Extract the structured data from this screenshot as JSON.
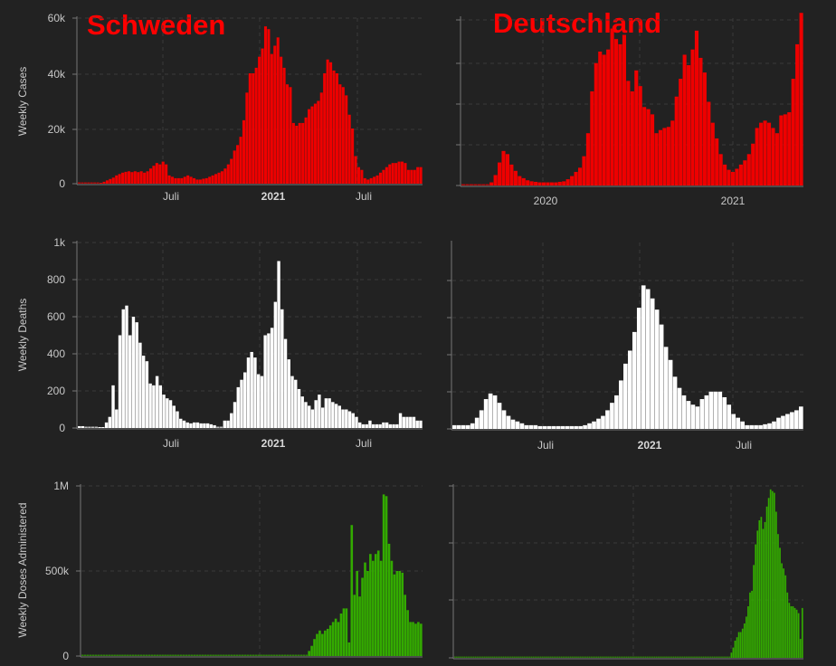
{
  "colors": {
    "background": "#222222",
    "cases": "#ee0000",
    "deaths": "#ffffff",
    "doses": "#33aa00",
    "title": "#ff0000",
    "grid": "#3a3a3a",
    "axis": "#777777"
  },
  "titles": {
    "left": "Schweden",
    "right": "Deutschland"
  },
  "chart_data": [
    {
      "type": "bar",
      "country": "Schweden",
      "ylabel": "Weekly Cases",
      "ylim": [
        0,
        60000
      ],
      "yticks": [
        "0",
        "20k",
        "40k",
        "60k"
      ],
      "xticks": [
        "Juli",
        "2021",
        "Juli"
      ],
      "values": [
        100,
        100,
        100,
        100,
        100,
        100,
        100,
        300,
        700,
        1200,
        1700,
        2200,
        3000,
        3500,
        4000,
        4300,
        4500,
        4200,
        4500,
        4200,
        4500,
        4000,
        4500,
        5500,
        6500,
        7500,
        7000,
        8000,
        7000,
        3000,
        2500,
        2000,
        2000,
        2000,
        2500,
        3000,
        2500,
        2000,
        1500,
        1500,
        1800,
        2000,
        2500,
        3000,
        3500,
        4000,
        4500,
        5500,
        7000,
        9000,
        12000,
        14000,
        17000,
        23000,
        33000,
        40000,
        40000,
        42000,
        46000,
        49000,
        57000,
        56000,
        47000,
        50000,
        53000,
        46000,
        42000,
        36000,
        35000,
        22000,
        21000,
        22000,
        22000,
        24000,
        27000,
        28000,
        29000,
        30000,
        33000,
        40000,
        45000,
        44000,
        41000,
        40000,
        36000,
        35000,
        32000,
        25000,
        20000,
        10000,
        6000,
        5000,
        2000,
        1500,
        2000,
        2500,
        3000,
        4000,
        5000,
        6000,
        7000,
        7500,
        7500,
        8000,
        8000,
        7500,
        5000,
        5000,
        5000,
        6000,
        6000
      ]
    },
    {
      "type": "bar",
      "country": "Deutschland",
      "ylabel": "",
      "ylim": [
        0,
        160000
      ],
      "yticks": [
        "",
        "",
        "",
        "",
        ""
      ],
      "xticks": [
        "2020",
        "2021"
      ],
      "values": [
        200,
        200,
        200,
        200,
        200,
        200,
        200,
        3000,
        10000,
        22000,
        33000,
        30000,
        20000,
        14000,
        9000,
        7000,
        5000,
        4000,
        3500,
        3000,
        3000,
        3000,
        3000,
        3000,
        3500,
        4000,
        6000,
        9000,
        13000,
        17000,
        28000,
        50000,
        90000,
        117000,
        128000,
        125000,
        130000,
        150000,
        140000,
        135000,
        144000,
        100000,
        90000,
        110000,
        95000,
        75000,
        73000,
        68000,
        50000,
        53000,
        55000,
        56000,
        62000,
        85000,
        102000,
        125000,
        115000,
        130000,
        148000,
        122000,
        108000,
        80000,
        60000,
        45000,
        30000,
        20000,
        15000,
        13000,
        16000,
        20000,
        24000,
        30000,
        40000,
        55000,
        60000,
        62000,
        60000,
        55000,
        50000,
        67000,
        68000,
        70000,
        102000,
        135000,
        165000
      ]
    },
    {
      "type": "bar",
      "country": "Schweden",
      "ylabel": "Weekly Deaths",
      "ylim": [
        0,
        1000
      ],
      "yticks": [
        "0",
        "200",
        "400",
        "600",
        "800",
        "1k"
      ],
      "xticks": [
        "Juli",
        "2021",
        "Juli"
      ],
      "values": [
        10,
        10,
        0,
        0,
        0,
        0,
        5,
        5,
        30,
        60,
        230,
        100,
        500,
        640,
        660,
        500,
        600,
        570,
        460,
        390,
        360,
        240,
        230,
        280,
        230,
        180,
        160,
        150,
        120,
        90,
        50,
        40,
        30,
        25,
        30,
        30,
        25,
        25,
        25,
        20,
        15,
        0,
        0,
        40,
        40,
        80,
        140,
        220,
        260,
        300,
        380,
        410,
        380,
        290,
        280,
        500,
        510,
        540,
        680,
        900,
        640,
        480,
        370,
        280,
        260,
        210,
        170,
        140,
        120,
        100,
        150,
        180,
        110,
        160,
        160,
        140,
        130,
        120,
        100,
        100,
        90,
        80,
        60,
        30,
        20,
        20,
        40,
        20,
        20,
        20,
        30,
        30,
        20,
        20,
        20,
        80,
        60,
        60,
        60,
        60,
        40,
        40
      ]
    },
    {
      "type": "bar",
      "country": "Deutschland",
      "ylabel": "",
      "ylim": [
        0,
        1000
      ],
      "yticks": [
        "",
        "",
        "",
        "",
        ""
      ],
      "xticks": [
        "Juli",
        "2021",
        "Juli"
      ],
      "values": [
        20,
        20,
        20,
        20,
        30,
        60,
        100,
        160,
        190,
        180,
        140,
        100,
        70,
        50,
        40,
        30,
        20,
        20,
        20,
        15,
        15,
        15,
        15,
        15,
        15,
        15,
        15,
        15,
        15,
        20,
        30,
        40,
        55,
        70,
        100,
        140,
        180,
        260,
        350,
        420,
        520,
        650,
        770,
        750,
        700,
        640,
        560,
        440,
        370,
        280,
        220,
        180,
        150,
        130,
        120,
        160,
        180,
        200,
        200,
        200,
        170,
        130,
        80,
        60,
        40,
        20,
        20,
        20,
        20,
        25,
        30,
        40,
        60,
        70,
        80,
        90,
        100,
        120
      ]
    },
    {
      "type": "bar",
      "country": "Schweden",
      "ylabel": "Weekly Doses Administered",
      "ylim": [
        0,
        1000000
      ],
      "yticks": [
        "0",
        "500k",
        "1M"
      ],
      "xticks": [],
      "values": [
        0,
        0,
        0,
        0,
        0,
        0,
        0,
        0,
        0,
        0,
        0,
        0,
        0,
        0,
        0,
        0,
        0,
        0,
        0,
        0,
        0,
        0,
        0,
        0,
        0,
        0,
        0,
        0,
        0,
        0,
        0,
        0,
        0,
        0,
        0,
        0,
        0,
        0,
        0,
        0,
        0,
        0,
        0,
        0,
        0,
        0,
        0,
        0,
        0,
        0,
        0,
        0,
        0,
        0,
        0,
        0,
        0,
        0,
        0,
        0,
        0,
        0,
        0,
        0,
        0,
        0,
        0,
        0,
        0,
        0,
        0,
        0,
        0,
        0,
        0,
        0,
        0,
        0,
        0,
        0,
        0,
        0,
        0,
        0,
        0,
        30000,
        60000,
        100000,
        130000,
        150000,
        130000,
        150000,
        160000,
        180000,
        200000,
        220000,
        200000,
        250000,
        280000,
        280000,
        80000,
        770000,
        360000,
        500000,
        350000,
        460000,
        550000,
        500000,
        600000,
        560000,
        600000,
        620000,
        560000,
        950000,
        940000,
        660000,
        560000,
        480000,
        500000,
        500000,
        490000,
        360000,
        270000,
        200000,
        200000,
        190000,
        200000,
        190000
      ]
    },
    {
      "type": "bar",
      "country": "Deutschland",
      "ylabel": "",
      "ylim": [
        0,
        1000000
      ],
      "yticks": [
        "",
        "",
        "",
        "",
        ""
      ],
      "xticks": [],
      "values": [
        0,
        0,
        0,
        0,
        0,
        0,
        0,
        0,
        0,
        0,
        0,
        0,
        0,
        0,
        0,
        0,
        0,
        0,
        0,
        0,
        0,
        0,
        0,
        0,
        0,
        0,
        0,
        0,
        0,
        0,
        0,
        0,
        0,
        0,
        0,
        0,
        0,
        0,
        0,
        0,
        0,
        0,
        0,
        0,
        0,
        0,
        0,
        0,
        0,
        0,
        0,
        0,
        0,
        0,
        0,
        0,
        0,
        0,
        0,
        0,
        0,
        0,
        0,
        0,
        0,
        0,
        0,
        0,
        0,
        0,
        0,
        0,
        0,
        0,
        0,
        0,
        0,
        0,
        0,
        0,
        0,
        0,
        0,
        0,
        0,
        0,
        0,
        0,
        0,
        0,
        0,
        0,
        0,
        0,
        0,
        0,
        0,
        0,
        0,
        0,
        0,
        0,
        0,
        0,
        0,
        0,
        0,
        0,
        0,
        0,
        0,
        0,
        0,
        0,
        0,
        0,
        0,
        0,
        0,
        0,
        0,
        0,
        0,
        0,
        0,
        0,
        0,
        0,
        0,
        0,
        0,
        0,
        0,
        0,
        0,
        0,
        0,
        0,
        0,
        0,
        0,
        0,
        0,
        0,
        0,
        0,
        0,
        0,
        30000,
        60000,
        100000,
        120000,
        150000,
        150000,
        170000,
        200000,
        240000,
        300000,
        380000,
        390000,
        540000,
        660000,
        740000,
        800000,
        820000,
        750000,
        790000,
        880000,
        930000,
        980000,
        970000,
        960000,
        850000,
        720000,
        640000,
        550000,
        520000,
        480000,
        380000,
        320000,
        300000,
        300000,
        290000,
        280000,
        260000,
        110000,
        290000
      ]
    }
  ]
}
